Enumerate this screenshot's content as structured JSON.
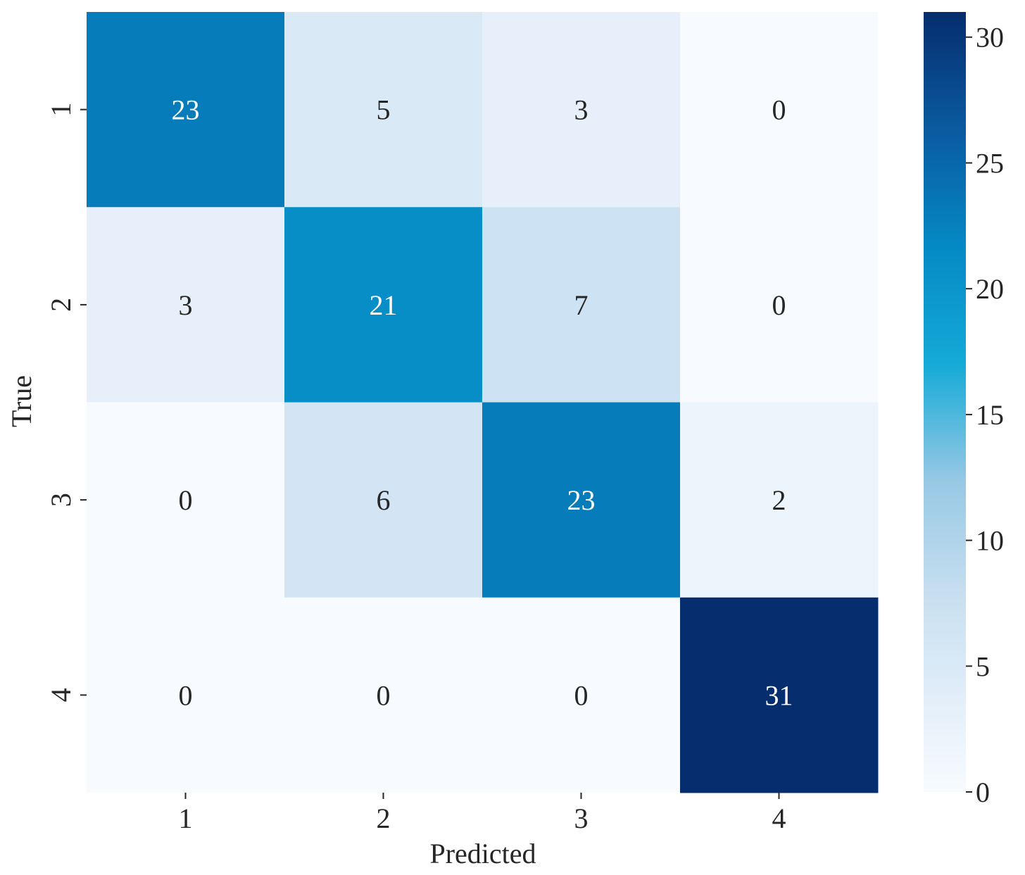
{
  "chart_data": {
    "type": "heatmap",
    "title": "",
    "xlabel": "Predicted",
    "ylabel": "True",
    "x_categories": [
      "1",
      "2",
      "3",
      "4"
    ],
    "y_categories": [
      "1",
      "2",
      "3",
      "4"
    ],
    "values": [
      [
        23,
        5,
        3,
        0
      ],
      [
        3,
        21,
        7,
        0
      ],
      [
        0,
        6,
        23,
        2
      ],
      [
        0,
        0,
        0,
        31
      ]
    ],
    "colorbar": {
      "range": [
        0,
        31
      ],
      "ticks": [
        0,
        5,
        10,
        15,
        20,
        25,
        30
      ],
      "colormap": "Blues"
    },
    "colors": {
      "low": "#f7fbff",
      "high": "#062d6e",
      "text_dark": "#262626",
      "text_light": "#ffffff"
    }
  }
}
